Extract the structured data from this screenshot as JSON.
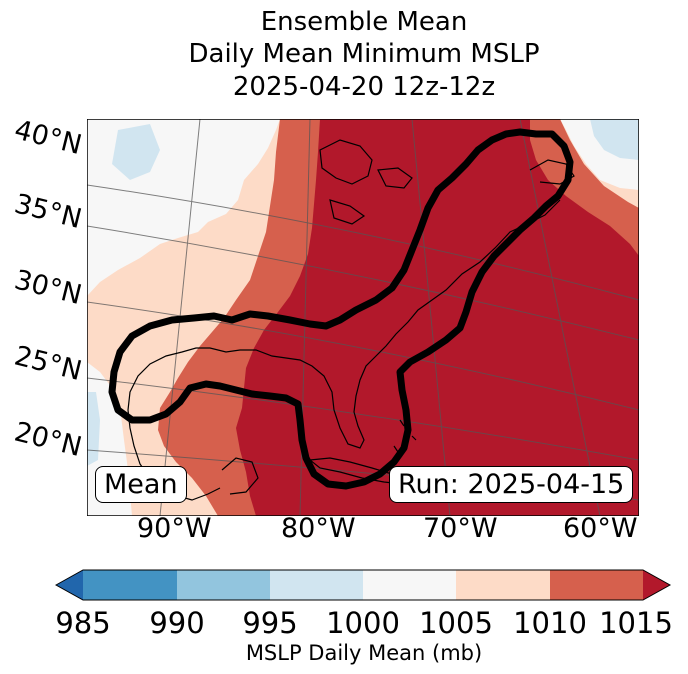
{
  "title": {
    "line1": "Ensemble Mean",
    "line2": "Daily Mean Minimum MSLP",
    "line3": "2025-04-20 12z-12z"
  },
  "map": {
    "lat_labels": [
      "40°N",
      "35°N",
      "30°N",
      "25°N",
      "20°N"
    ],
    "lon_labels": [
      "90°W",
      "80°W",
      "70°W",
      "60°W"
    ],
    "left_label": "Mean",
    "run_label": "Run: 2025-04-15",
    "fill_colors": {
      "lt_1000": "#d1e5f0",
      "b1000_1005": "#f7f7f7",
      "b1005_1010": "#fddbc7",
      "b1010_1015": "#d6604d",
      "gt_1015": "#b2182b"
    },
    "contour_color": "#000000"
  },
  "colorbar": {
    "label": "MSLP Daily Mean (mb)",
    "ticks": [
      "985",
      "990",
      "995",
      "1000",
      "1005",
      "1010",
      "1015"
    ],
    "colors": [
      "#2166ac",
      "#4393c3",
      "#92c5de",
      "#d1e5f0",
      "#f7f7f7",
      "#fddbc7",
      "#d6604d",
      "#b2182b"
    ],
    "under_color": "#2166ac",
    "over_color": "#b2182b"
  }
}
